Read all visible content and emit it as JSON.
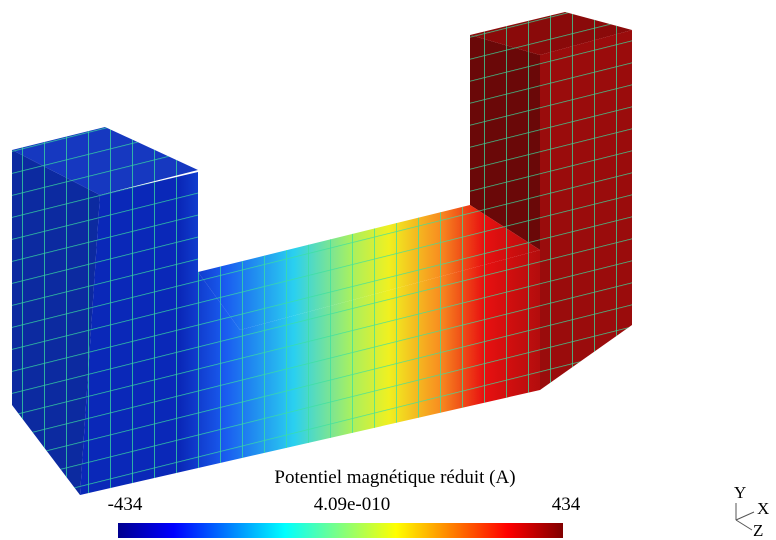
{
  "colorbar": {
    "title": "Potentiel magnétique réduit (A)",
    "labels": [
      "-434",
      "4.09e-010",
      "434"
    ]
  },
  "axes_triad": {
    "y": "Y",
    "x": "X",
    "z": "Z"
  }
}
